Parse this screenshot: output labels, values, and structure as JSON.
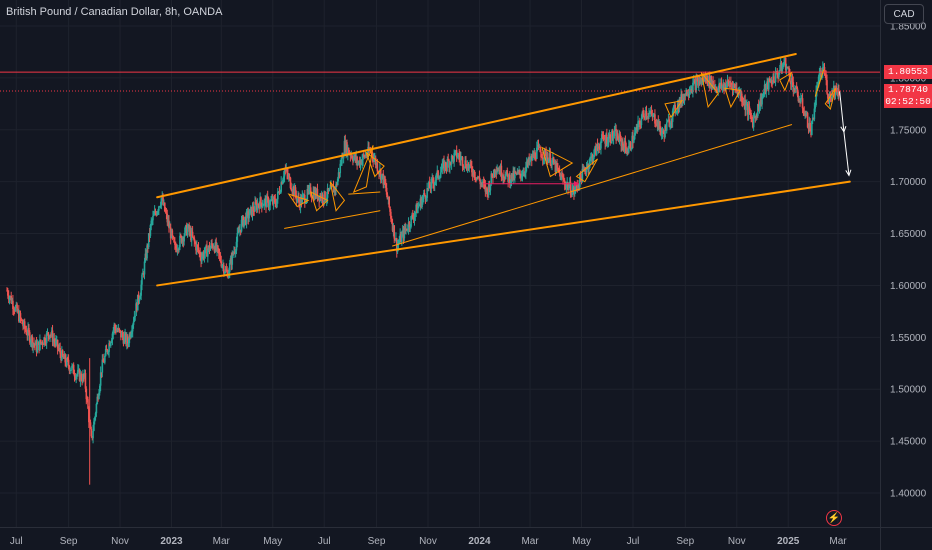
{
  "header": {
    "symbol_title": "British Pound / Canadian Dollar, 8h, OANDA",
    "currency_button": "CAD"
  },
  "price_tags": {
    "resistance": "1.80553",
    "current_price": "1.78740",
    "countdown": "02:52:50"
  },
  "icons": {
    "alert": "lightning-bolt-icon"
  },
  "colors": {
    "background": "#131722",
    "grid": "#1e222d",
    "up_candle": "#26a69a",
    "down_candle": "#ef5350",
    "trendline": "#ff9800",
    "resistance_line": "#f23645",
    "projection_arrow": "#ffffff"
  },
  "chart_data": {
    "type": "candlestick",
    "title": "British Pound / Canadian Dollar, 8h, OANDA",
    "y_axis": {
      "range": [
        1.39,
        1.85
      ],
      "ticks": [
        "1.85000",
        "1.80000",
        "1.75000",
        "1.70000",
        "1.65000",
        "1.60000",
        "1.55000",
        "1.50000",
        "1.45000",
        "1.40000"
      ],
      "tick_values": [
        1.85,
        1.8,
        1.75,
        1.7,
        1.65,
        1.6,
        1.55,
        1.5,
        1.45,
        1.4
      ],
      "position": "right"
    },
    "x_axis": {
      "ticks": [
        "Jul",
        "Sep",
        "Nov",
        "2023",
        "Mar",
        "May",
        "Jul",
        "Sep",
        "Nov",
        "2024",
        "Mar",
        "May",
        "Jul",
        "Sep",
        "Nov",
        "2025",
        "Mar"
      ],
      "tick_dates": [
        "2022-07-01",
        "2022-09-01",
        "2022-11-01",
        "2023-01-01",
        "2023-03-01",
        "2023-05-01",
        "2023-07-01",
        "2023-09-01",
        "2023-11-01",
        "2024-01-01",
        "2024-03-01",
        "2024-05-01",
        "2024-07-01",
        "2024-09-01",
        "2024-11-01",
        "2025-01-01",
        "2025-03-01"
      ],
      "bold_ticks": [
        "2023",
        "2024",
        "2025"
      ]
    },
    "price_path": [
      [
        "2022-06-20",
        1.595
      ],
      [
        "2022-07-10",
        1.56
      ],
      [
        "2022-07-25",
        1.54
      ],
      [
        "2022-08-10",
        1.555
      ],
      [
        "2022-08-25",
        1.53
      ],
      [
        "2022-09-10",
        1.515
      ],
      [
        "2022-09-20",
        1.51
      ],
      [
        "2022-09-28",
        1.45
      ],
      [
        "2022-10-10",
        1.52
      ],
      [
        "2022-10-25",
        1.56
      ],
      [
        "2022-11-10",
        1.545
      ],
      [
        "2022-11-25",
        1.595
      ],
      [
        "2022-12-08",
        1.66
      ],
      [
        "2022-12-20",
        1.684
      ],
      [
        "2023-01-05",
        1.635
      ],
      [
        "2023-01-20",
        1.655
      ],
      [
        "2023-02-05",
        1.628
      ],
      [
        "2023-02-20",
        1.64
      ],
      [
        "2023-03-08",
        1.61
      ],
      [
        "2023-03-25",
        1.66
      ],
      [
        "2023-04-15",
        1.68
      ],
      [
        "2023-05-05",
        1.68
      ],
      [
        "2023-05-15",
        1.712
      ],
      [
        "2023-06-01",
        1.68
      ],
      [
        "2023-06-15",
        1.69
      ],
      [
        "2023-07-01",
        1.685
      ],
      [
        "2023-07-15",
        1.695
      ],
      [
        "2023-07-25",
        1.735
      ],
      [
        "2023-08-10",
        1.718
      ],
      [
        "2023-08-25",
        1.73
      ],
      [
        "2023-09-10",
        1.7
      ],
      [
        "2023-09-25",
        1.638
      ],
      [
        "2023-10-15",
        1.668
      ],
      [
        "2023-10-30",
        1.69
      ],
      [
        "2023-11-20",
        1.715
      ],
      [
        "2023-12-05",
        1.726
      ],
      [
        "2023-12-25",
        1.71
      ],
      [
        "2024-01-10",
        1.69
      ],
      [
        "2024-01-20",
        1.715
      ],
      [
        "2024-02-05",
        1.703
      ],
      [
        "2024-02-20",
        1.708
      ],
      [
        "2024-03-10",
        1.73
      ],
      [
        "2024-03-25",
        1.722
      ],
      [
        "2024-04-10",
        1.7
      ],
      [
        "2024-04-22",
        1.69
      ],
      [
        "2024-05-05",
        1.712
      ],
      [
        "2024-05-25",
        1.74
      ],
      [
        "2024-06-10",
        1.745
      ],
      [
        "2024-06-25",
        1.73
      ],
      [
        "2024-07-15",
        1.768
      ],
      [
        "2024-07-28",
        1.76
      ],
      [
        "2024-08-05",
        1.745
      ],
      [
        "2024-08-20",
        1.77
      ],
      [
        "2024-09-05",
        1.79
      ],
      [
        "2024-09-25",
        1.8
      ],
      [
        "2024-10-10",
        1.79
      ],
      [
        "2024-10-25",
        1.795
      ],
      [
        "2024-11-05",
        1.785
      ],
      [
        "2024-11-20",
        1.758
      ],
      [
        "2024-12-05",
        1.79
      ],
      [
        "2024-12-20",
        1.805
      ],
      [
        "2024-12-28",
        1.815
      ],
      [
        "2025-01-08",
        1.79
      ],
      [
        "2025-01-18",
        1.773
      ],
      [
        "2025-01-28",
        1.748
      ],
      [
        "2025-02-05",
        1.795
      ],
      [
        "2025-02-12",
        1.81
      ],
      [
        "2025-02-18",
        1.78
      ],
      [
        "2025-02-24",
        1.79
      ],
      [
        "2025-03-02",
        1.787
      ]
    ],
    "annotations": {
      "resistance_level": 1.80553,
      "current_price": 1.7874,
      "upper_channel": [
        [
          "2022-12-15",
          1.685
        ],
        [
          "2025-01-10",
          1.823
        ]
      ],
      "lower_channel": [
        [
          "2022-12-15",
          1.6
        ],
        [
          "2025-03-15",
          1.7
        ]
      ],
      "inner_trendline": [
        [
          "2023-09-20",
          1.638
        ],
        [
          "2025-01-05",
          1.755
        ]
      ],
      "projection": [
        [
          "2025-03-03",
          1.787
        ],
        [
          "2025-03-08",
          1.748
        ],
        [
          "2025-03-14",
          1.706
        ]
      ]
    }
  }
}
